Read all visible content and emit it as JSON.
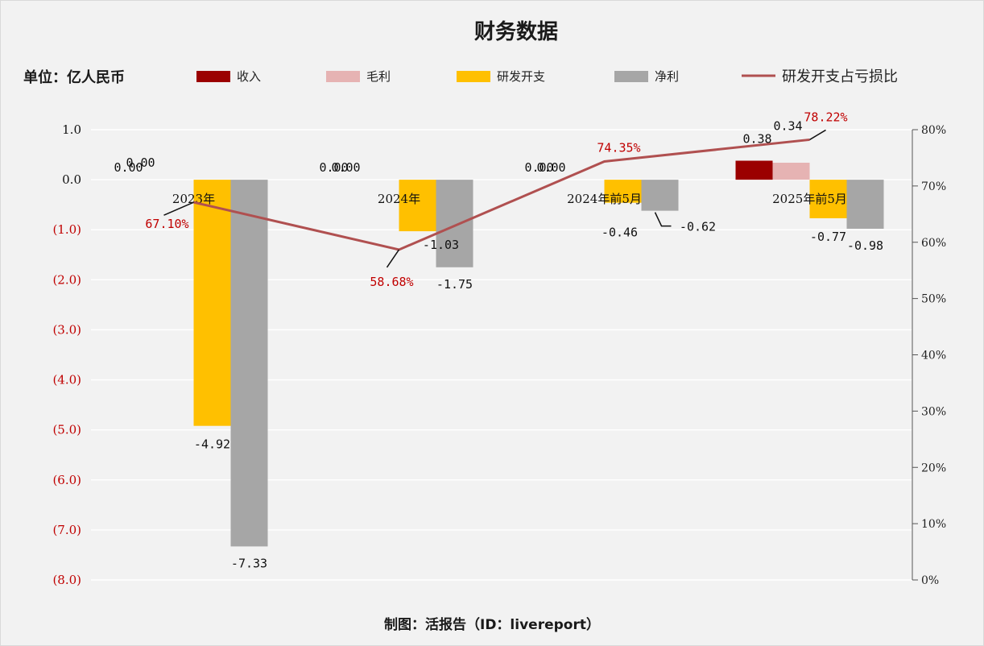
{
  "chart_data": {
    "type": "bar",
    "title": "财务数据",
    "unit_label": "单位：亿人民币",
    "categories": [
      "2023年",
      "2024年",
      "2024年前5月",
      "2025年前5月"
    ],
    "series": [
      {
        "name": "收入",
        "kind": "bar",
        "color": "#9b0000",
        "values": [
          0.0,
          0.0,
          0.0,
          0.38
        ],
        "labels": [
          "0.00",
          "0.00",
          "0.00",
          "0.38"
        ]
      },
      {
        "name": "毛利",
        "kind": "bar",
        "color": "#e6b3b3",
        "values": [
          0.0,
          0.0,
          0.0,
          0.34
        ],
        "labels": [
          "0.00",
          "0.00",
          "0.00",
          "0.34"
        ]
      },
      {
        "name": "研发开支",
        "kind": "bar",
        "color": "#ffc000",
        "values": [
          -4.92,
          -1.03,
          -0.46,
          -0.77
        ],
        "labels": [
          "-4.92",
          "-1.03",
          "-0.46",
          "-0.77"
        ]
      },
      {
        "name": "净利",
        "kind": "bar",
        "color": "#a6a6a6",
        "values": [
          -7.33,
          -1.75,
          -0.62,
          -0.98
        ],
        "labels": [
          "-7.33",
          "-1.75",
          "-0.62",
          "-0.98"
        ]
      },
      {
        "name": "研发开支占亏损比",
        "kind": "line",
        "axis": "right",
        "color": "#b05050",
        "values": [
          67.1,
          58.68,
          74.35,
          78.22
        ],
        "labels": [
          "67.10%",
          "58.68%",
          "74.35%",
          "78.22%"
        ]
      }
    ],
    "y_left": {
      "min": -8,
      "max": 1,
      "step": 1,
      "ticks": [
        "1.0",
        "0.0",
        "(1.0)",
        "(2.0)",
        "(3.0)",
        "(4.0)",
        "(5.0)",
        "(6.0)",
        "(7.0)",
        "(8.0)"
      ],
      "negative_color": "#c00000"
    },
    "y_right": {
      "min": 0,
      "max": 80,
      "step": 10,
      "ticks": [
        "80%",
        "70%",
        "60%",
        "50%",
        "40%",
        "30%",
        "20%",
        "10%",
        "0%"
      ]
    },
    "grid": true,
    "legend_position": "top"
  },
  "footer": "制图：活报告（ID：livereport）"
}
